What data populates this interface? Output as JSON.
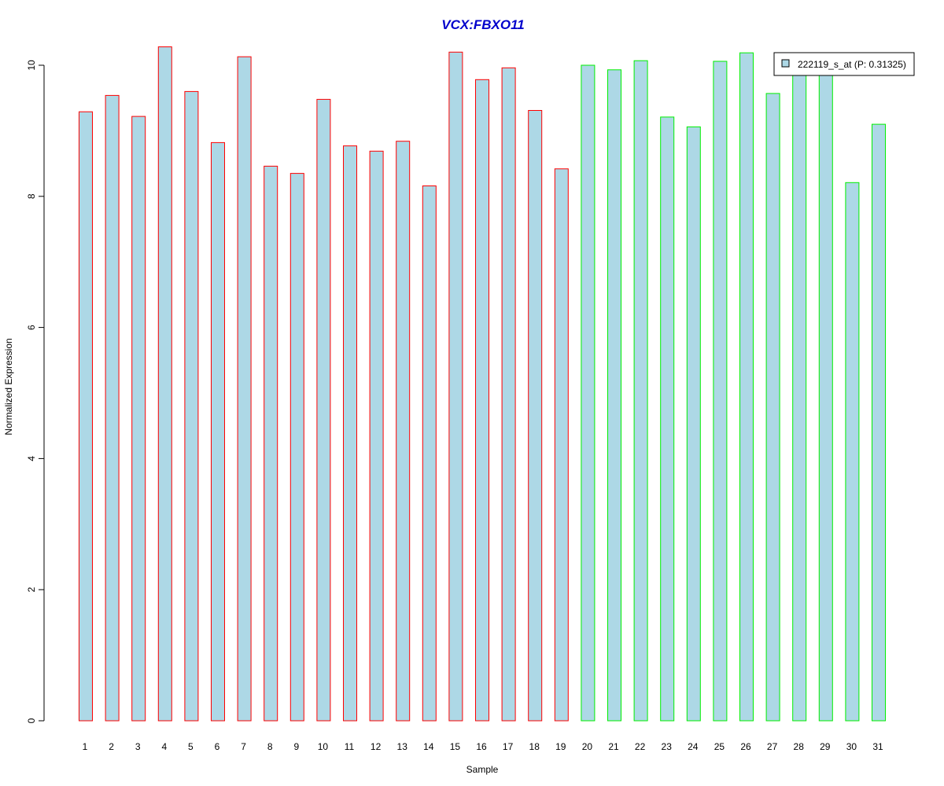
{
  "chart_data": {
    "type": "bar",
    "title": "VCX:FBXO11",
    "xlabel": "Sample",
    "ylabel": "Normalized Expression",
    "ylim": [
      0,
      10.3
    ],
    "yticks": [
      "0",
      "2",
      "4",
      "6",
      "8",
      "10"
    ],
    "grid": false,
    "legend_position": "top-right",
    "categories": [
      "1",
      "2",
      "3",
      "4",
      "5",
      "6",
      "7",
      "8",
      "9",
      "10",
      "11",
      "12",
      "13",
      "14",
      "15",
      "16",
      "17",
      "18",
      "19",
      "20",
      "21",
      "22",
      "23",
      "24",
      "25",
      "26",
      "27",
      "28",
      "29",
      "30",
      "31"
    ],
    "series": [
      {
        "name": "222119_s_at (P: 0.31325)",
        "values": [
          9.29,
          9.54,
          9.22,
          10.28,
          9.6,
          8.82,
          10.13,
          8.46,
          8.35,
          9.48,
          8.77,
          8.69,
          8.84,
          8.16,
          10.2,
          9.78,
          9.96,
          9.31,
          8.42,
          10.0,
          9.93,
          10.07,
          9.21,
          9.06,
          10.06,
          10.19,
          9.57,
          9.85,
          9.9,
          8.21,
          9.1
        ]
      }
    ],
    "groups": [
      {
        "from": 1,
        "to": 19,
        "border_color": "#ff0000"
      },
      {
        "from": 20,
        "to": 31,
        "border_color": "#00ee00"
      }
    ],
    "colors": {
      "bar_fill": "#add8e6",
      "title": "#0000cc",
      "axis": "#000000"
    }
  }
}
